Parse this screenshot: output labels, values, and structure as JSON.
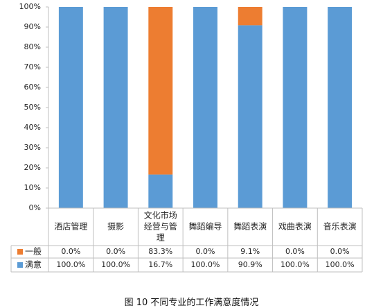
{
  "chart_data": {
    "type": "bar",
    "stacked": true,
    "percent": true,
    "categories": [
      "酒店管理",
      "摄影",
      "文化市场经营与管理",
      "舞蹈编导",
      "舞蹈表演",
      "戏曲表演",
      "音乐表演"
    ],
    "category_lines": [
      [
        "酒店管理"
      ],
      [
        "摄影"
      ],
      [
        "文化市场",
        "经营与管",
        "理"
      ],
      [
        "舞蹈编导"
      ],
      [
        "舞蹈表演"
      ],
      [
        "戏曲表演"
      ],
      [
        "音乐表演"
      ]
    ],
    "series": [
      {
        "name": "满意",
        "color": "#5b9bd5",
        "values": [
          100.0,
          100.0,
          16.7,
          100.0,
          90.9,
          100.0,
          100.0
        ]
      },
      {
        "name": "一般",
        "color": "#ed7d31",
        "values": [
          0.0,
          0.0,
          83.3,
          0.0,
          9.1,
          0.0,
          0.0
        ]
      }
    ],
    "table": {
      "rows": [
        {
          "name": "一般",
          "color": "#ed7d31",
          "cells": [
            "0.0%",
            "0.0%",
            "83.3%",
            "0.0%",
            "9.1%",
            "0.0%",
            "0.0%"
          ]
        },
        {
          "name": "满意",
          "color": "#5b9bd5",
          "cells": [
            "100.0%",
            "100.0%",
            "16.7%",
            "100.0%",
            "90.9%",
            "100.0%",
            "100.0%"
          ]
        }
      ]
    },
    "yticks": [
      "0%",
      "10%",
      "20%",
      "30%",
      "40%",
      "50%",
      "60%",
      "70%",
      "80%",
      "90%",
      "100%"
    ],
    "ylim": [
      0,
      100
    ],
    "grid": false,
    "legend": "data-table"
  },
  "caption": "图 10  不同专业的工作满意度情况"
}
